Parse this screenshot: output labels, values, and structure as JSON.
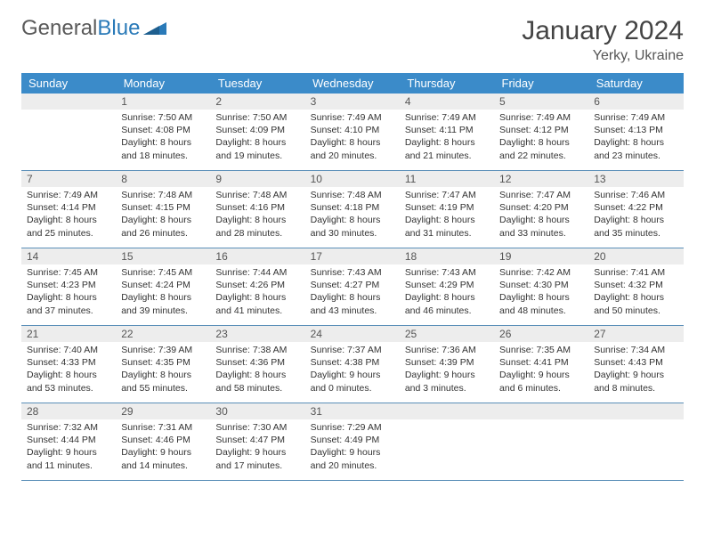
{
  "brand": {
    "part1": "General",
    "part2": "Blue"
  },
  "title": "January 2024",
  "location": "Yerky, Ukraine",
  "colors": {
    "header_bg": "#3b8bc9",
    "header_text": "#ffffff",
    "daynum_bg": "#ededed",
    "rule": "#5a8fb8",
    "brand_blue": "#2a7ab8",
    "brand_gray": "#5a5a5a"
  },
  "weekdays": [
    "Sunday",
    "Monday",
    "Tuesday",
    "Wednesday",
    "Thursday",
    "Friday",
    "Saturday"
  ],
  "weeks": [
    [
      {
        "n": "",
        "lines": [
          "",
          "",
          "",
          ""
        ]
      },
      {
        "n": "1",
        "lines": [
          "Sunrise: 7:50 AM",
          "Sunset: 4:08 PM",
          "Daylight: 8 hours",
          "and 18 minutes."
        ]
      },
      {
        "n": "2",
        "lines": [
          "Sunrise: 7:50 AM",
          "Sunset: 4:09 PM",
          "Daylight: 8 hours",
          "and 19 minutes."
        ]
      },
      {
        "n": "3",
        "lines": [
          "Sunrise: 7:49 AM",
          "Sunset: 4:10 PM",
          "Daylight: 8 hours",
          "and 20 minutes."
        ]
      },
      {
        "n": "4",
        "lines": [
          "Sunrise: 7:49 AM",
          "Sunset: 4:11 PM",
          "Daylight: 8 hours",
          "and 21 minutes."
        ]
      },
      {
        "n": "5",
        "lines": [
          "Sunrise: 7:49 AM",
          "Sunset: 4:12 PM",
          "Daylight: 8 hours",
          "and 22 minutes."
        ]
      },
      {
        "n": "6",
        "lines": [
          "Sunrise: 7:49 AM",
          "Sunset: 4:13 PM",
          "Daylight: 8 hours",
          "and 23 minutes."
        ]
      }
    ],
    [
      {
        "n": "7",
        "lines": [
          "Sunrise: 7:49 AM",
          "Sunset: 4:14 PM",
          "Daylight: 8 hours",
          "and 25 minutes."
        ]
      },
      {
        "n": "8",
        "lines": [
          "Sunrise: 7:48 AM",
          "Sunset: 4:15 PM",
          "Daylight: 8 hours",
          "and 26 minutes."
        ]
      },
      {
        "n": "9",
        "lines": [
          "Sunrise: 7:48 AM",
          "Sunset: 4:16 PM",
          "Daylight: 8 hours",
          "and 28 minutes."
        ]
      },
      {
        "n": "10",
        "lines": [
          "Sunrise: 7:48 AM",
          "Sunset: 4:18 PM",
          "Daylight: 8 hours",
          "and 30 minutes."
        ]
      },
      {
        "n": "11",
        "lines": [
          "Sunrise: 7:47 AM",
          "Sunset: 4:19 PM",
          "Daylight: 8 hours",
          "and 31 minutes."
        ]
      },
      {
        "n": "12",
        "lines": [
          "Sunrise: 7:47 AM",
          "Sunset: 4:20 PM",
          "Daylight: 8 hours",
          "and 33 minutes."
        ]
      },
      {
        "n": "13",
        "lines": [
          "Sunrise: 7:46 AM",
          "Sunset: 4:22 PM",
          "Daylight: 8 hours",
          "and 35 minutes."
        ]
      }
    ],
    [
      {
        "n": "14",
        "lines": [
          "Sunrise: 7:45 AM",
          "Sunset: 4:23 PM",
          "Daylight: 8 hours",
          "and 37 minutes."
        ]
      },
      {
        "n": "15",
        "lines": [
          "Sunrise: 7:45 AM",
          "Sunset: 4:24 PM",
          "Daylight: 8 hours",
          "and 39 minutes."
        ]
      },
      {
        "n": "16",
        "lines": [
          "Sunrise: 7:44 AM",
          "Sunset: 4:26 PM",
          "Daylight: 8 hours",
          "and 41 minutes."
        ]
      },
      {
        "n": "17",
        "lines": [
          "Sunrise: 7:43 AM",
          "Sunset: 4:27 PM",
          "Daylight: 8 hours",
          "and 43 minutes."
        ]
      },
      {
        "n": "18",
        "lines": [
          "Sunrise: 7:43 AM",
          "Sunset: 4:29 PM",
          "Daylight: 8 hours",
          "and 46 minutes."
        ]
      },
      {
        "n": "19",
        "lines": [
          "Sunrise: 7:42 AM",
          "Sunset: 4:30 PM",
          "Daylight: 8 hours",
          "and 48 minutes."
        ]
      },
      {
        "n": "20",
        "lines": [
          "Sunrise: 7:41 AM",
          "Sunset: 4:32 PM",
          "Daylight: 8 hours",
          "and 50 minutes."
        ]
      }
    ],
    [
      {
        "n": "21",
        "lines": [
          "Sunrise: 7:40 AM",
          "Sunset: 4:33 PM",
          "Daylight: 8 hours",
          "and 53 minutes."
        ]
      },
      {
        "n": "22",
        "lines": [
          "Sunrise: 7:39 AM",
          "Sunset: 4:35 PM",
          "Daylight: 8 hours",
          "and 55 minutes."
        ]
      },
      {
        "n": "23",
        "lines": [
          "Sunrise: 7:38 AM",
          "Sunset: 4:36 PM",
          "Daylight: 8 hours",
          "and 58 minutes."
        ]
      },
      {
        "n": "24",
        "lines": [
          "Sunrise: 7:37 AM",
          "Sunset: 4:38 PM",
          "Daylight: 9 hours",
          "and 0 minutes."
        ]
      },
      {
        "n": "25",
        "lines": [
          "Sunrise: 7:36 AM",
          "Sunset: 4:39 PM",
          "Daylight: 9 hours",
          "and 3 minutes."
        ]
      },
      {
        "n": "26",
        "lines": [
          "Sunrise: 7:35 AM",
          "Sunset: 4:41 PM",
          "Daylight: 9 hours",
          "and 6 minutes."
        ]
      },
      {
        "n": "27",
        "lines": [
          "Sunrise: 7:34 AM",
          "Sunset: 4:43 PM",
          "Daylight: 9 hours",
          "and 8 minutes."
        ]
      }
    ],
    [
      {
        "n": "28",
        "lines": [
          "Sunrise: 7:32 AM",
          "Sunset: 4:44 PM",
          "Daylight: 9 hours",
          "and 11 minutes."
        ]
      },
      {
        "n": "29",
        "lines": [
          "Sunrise: 7:31 AM",
          "Sunset: 4:46 PM",
          "Daylight: 9 hours",
          "and 14 minutes."
        ]
      },
      {
        "n": "30",
        "lines": [
          "Sunrise: 7:30 AM",
          "Sunset: 4:47 PM",
          "Daylight: 9 hours",
          "and 17 minutes."
        ]
      },
      {
        "n": "31",
        "lines": [
          "Sunrise: 7:29 AM",
          "Sunset: 4:49 PM",
          "Daylight: 9 hours",
          "and 20 minutes."
        ]
      },
      {
        "n": "",
        "lines": [
          "",
          "",
          "",
          ""
        ]
      },
      {
        "n": "",
        "lines": [
          "",
          "",
          "",
          ""
        ]
      },
      {
        "n": "",
        "lines": [
          "",
          "",
          "",
          ""
        ]
      }
    ]
  ]
}
